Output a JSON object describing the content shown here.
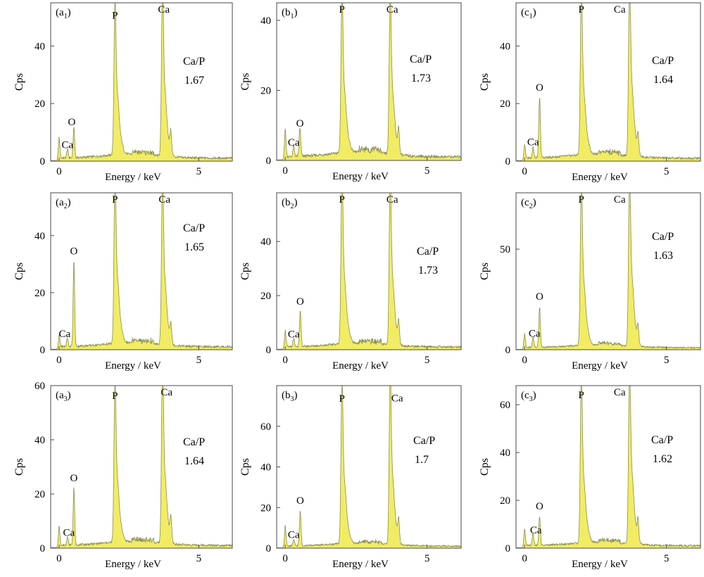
{
  "chart_data": [
    {
      "id": "a1",
      "panel_label": "(a",
      "panel_sub": "1",
      "type": "area",
      "xlabel": "Energy / keV",
      "ylabel": "Cps",
      "xlim": [
        -0.3,
        6.2
      ],
      "ylim": [
        0,
        55
      ],
      "xticks": [
        {
          "v": 0,
          "label": "0"
        },
        {
          "v": 5,
          "label": "5"
        }
      ],
      "yticks": [
        {
          "v": 0,
          "label": "0"
        },
        {
          "v": 20,
          "label": "20"
        },
        {
          "v": 40,
          "label": "40"
        }
      ],
      "ratio_label": "Ca/P",
      "ratio_value": "1.67",
      "peaks": [
        {
          "x": 0.0,
          "h": 7,
          "label": "",
          "dx": 0,
          "dy": 0
        },
        {
          "x": 0.3,
          "h": 3,
          "label": "Ca",
          "dx": 0,
          "dy": -6
        },
        {
          "x": 0.53,
          "h": 10.5,
          "label": "O",
          "dx": -3,
          "dy": -8
        },
        {
          "x": 2.0,
          "h": 47.5,
          "label": "P",
          "dx": 0,
          "dy": -8
        },
        {
          "x": 3.7,
          "h": 52.5,
          "label": "Ca",
          "dx": 2,
          "dy": -6
        },
        {
          "x": 4.0,
          "h": 7,
          "label": "",
          "dx": 0,
          "dy": 0
        }
      ]
    },
    {
      "id": "b1",
      "panel_label": "(b",
      "panel_sub": "1",
      "type": "area",
      "xlabel": "Energy / keV",
      "ylabel": "Cps",
      "xlim": [
        -0.3,
        6.2
      ],
      "ylim": [
        0,
        45
      ],
      "xticks": [
        {
          "v": 0,
          "label": "0"
        },
        {
          "v": 5,
          "label": "5"
        }
      ],
      "yticks": [
        {
          "v": 0,
          "label": "0"
        },
        {
          "v": 20,
          "label": "20"
        },
        {
          "v": 40,
          "label": "40"
        }
      ],
      "ratio_label": "Ca/P",
      "ratio_value": "1.73",
      "peaks": [
        {
          "x": 0.0,
          "h": 8,
          "label": "",
          "dx": 0,
          "dy": 0
        },
        {
          "x": 0.3,
          "h": 3,
          "label": "Ca",
          "dx": 0,
          "dy": -6
        },
        {
          "x": 0.52,
          "h": 8,
          "label": "O",
          "dx": 0,
          "dy": -8
        },
        {
          "x": 2.0,
          "h": 41,
          "label": "P",
          "dx": 0,
          "dy": -8
        },
        {
          "x": 3.7,
          "h": 41,
          "label": "Ca",
          "dx": 3,
          "dy": -6
        },
        {
          "x": 4.0,
          "h": 6,
          "label": "",
          "dx": 0,
          "dy": 0
        }
      ]
    },
    {
      "id": "c1",
      "panel_label": "(c",
      "panel_sub": "1",
      "type": "area",
      "xlabel": "Energy / keV",
      "ylabel": "Cps",
      "xlim": [
        -0.3,
        6.2
      ],
      "ylim": [
        0,
        55
      ],
      "xticks": [
        {
          "v": 0,
          "label": "0"
        },
        {
          "v": 5,
          "label": "5"
        }
      ],
      "yticks": [
        {
          "v": 0,
          "label": "0"
        },
        {
          "v": 20,
          "label": "20"
        },
        {
          "v": 40,
          "label": "40"
        }
      ],
      "ratio_label": "Ca/P",
      "ratio_value": "1.64",
      "peaks": [
        {
          "x": 0.0,
          "h": 5,
          "label": "",
          "dx": 0,
          "dy": 0
        },
        {
          "x": 0.3,
          "h": 4,
          "label": "Ca",
          "dx": 0,
          "dy": -6
        },
        {
          "x": 0.53,
          "h": 21,
          "label": "O",
          "dx": 0,
          "dy": -14
        },
        {
          "x": 2.0,
          "h": 51,
          "label": "P",
          "dx": 0,
          "dy": -8
        },
        {
          "x": 3.7,
          "h": 55,
          "label": "Ca",
          "dx": -14,
          "dy": 8
        },
        {
          "x": 4.0,
          "h": 6,
          "label": "",
          "dx": 0,
          "dy": 0
        }
      ]
    },
    {
      "id": "a2",
      "panel_label": "(a",
      "panel_sub": "2",
      "type": "area",
      "xlabel": "Energy / keV",
      "ylabel": "Cps",
      "xlim": [
        -0.3,
        6.2
      ],
      "ylim": [
        0,
        55
      ],
      "xticks": [
        {
          "v": 0,
          "label": "0"
        },
        {
          "v": 5,
          "label": "5"
        }
      ],
      "yticks": [
        {
          "v": 0,
          "label": "0"
        },
        {
          "v": 20,
          "label": "20"
        },
        {
          "v": 40,
          "label": "40"
        }
      ],
      "ratio_label": "Ca/P",
      "ratio_value": "1.65",
      "peaks": [
        {
          "x": 0.0,
          "h": 4,
          "label": "",
          "dx": 0,
          "dy": 0
        },
        {
          "x": 0.3,
          "h": 3,
          "label": "Ca",
          "dx": -4,
          "dy": -6
        },
        {
          "x": 0.53,
          "h": 30,
          "label": "O",
          "dx": 0,
          "dy": -14
        },
        {
          "x": 2.0,
          "h": 53,
          "label": "P",
          "dx": 0,
          "dy": -8
        },
        {
          "x": 3.7,
          "h": 52,
          "label": "Ca",
          "dx": 3,
          "dy": -6
        },
        {
          "x": 4.0,
          "h": 6,
          "label": "",
          "dx": 0,
          "dy": 0
        }
      ]
    },
    {
      "id": "b2",
      "panel_label": "(b",
      "panel_sub": "2",
      "type": "area",
      "xlabel": "Energy / keV",
      "ylabel": "Cps",
      "xlim": [
        -0.3,
        6.2
      ],
      "ylim": [
        0,
        58
      ],
      "xticks": [
        {
          "v": 0,
          "label": "0"
        },
        {
          "v": 5,
          "label": "5"
        }
      ],
      "yticks": [
        {
          "v": 0,
          "label": "0"
        },
        {
          "v": 20,
          "label": "20"
        },
        {
          "v": 40,
          "label": "40"
        }
      ],
      "ratio_label": "Ca/P",
      "ratio_value": "1.73",
      "peaks": [
        {
          "x": 0.0,
          "h": 6,
          "label": "",
          "dx": 0,
          "dy": 0
        },
        {
          "x": 0.3,
          "h": 3,
          "label": "Ca",
          "dx": 0,
          "dy": -6
        },
        {
          "x": 0.53,
          "h": 13,
          "label": "O",
          "dx": 0,
          "dy": -14
        },
        {
          "x": 2.0,
          "h": 56,
          "label": "P",
          "dx": 0,
          "dy": -8
        },
        {
          "x": 3.7,
          "h": 55,
          "label": "Ca",
          "dx": 3,
          "dy": -6
        },
        {
          "x": 4.0,
          "h": 7,
          "label": "",
          "dx": 0,
          "dy": 0
        }
      ]
    },
    {
      "id": "c2",
      "panel_label": "(c",
      "panel_sub": "2",
      "type": "area",
      "xlabel": "Energy / keV",
      "ylabel": "Cps",
      "xlim": [
        -0.3,
        6.2
      ],
      "ylim": [
        0,
        78
      ],
      "xticks": [
        {
          "v": 0,
          "label": "0"
        },
        {
          "v": 5,
          "label": "5"
        }
      ],
      "yticks": [
        {
          "v": 0,
          "label": "0"
        },
        {
          "v": 50,
          "label": "50"
        }
      ],
      "ratio_label": "Ca/P",
      "ratio_value": "1.63",
      "peaks": [
        {
          "x": 0.0,
          "h": 7,
          "label": "",
          "dx": 0,
          "dy": 0
        },
        {
          "x": 0.3,
          "h": 5,
          "label": "Ca",
          "dx": 2,
          "dy": -4
        },
        {
          "x": 0.53,
          "h": 20,
          "label": "O",
          "dx": 0,
          "dy": -14
        },
        {
          "x": 2.0,
          "h": 73,
          "label": "P",
          "dx": 0,
          "dy": -8
        },
        {
          "x": 3.7,
          "h": 78,
          "label": "Ca",
          "dx": -14,
          "dy": 10
        },
        {
          "x": 4.0,
          "h": 8,
          "label": "",
          "dx": 0,
          "dy": 0
        }
      ]
    },
    {
      "id": "a3",
      "panel_label": "(a",
      "panel_sub": "3",
      "type": "area",
      "xlabel": "Energy / keV",
      "ylabel": "Cps",
      "xlim": [
        -0.3,
        6.2
      ],
      "ylim": [
        0,
        60
      ],
      "xticks": [
        {
          "v": 0,
          "label": "0"
        },
        {
          "v": 5,
          "label": "5"
        }
      ],
      "yticks": [
        {
          "v": 0,
          "label": "0"
        },
        {
          "v": 20,
          "label": "20"
        },
        {
          "v": 40,
          "label": "40"
        },
        {
          "v": 60,
          "label": "60"
        }
      ],
      "ratio_label": "Ca/P",
      "ratio_value": "1.64",
      "peaks": [
        {
          "x": 0.0,
          "h": 7,
          "label": "",
          "dx": 0,
          "dy": 0
        },
        {
          "x": 0.3,
          "h": 3,
          "label": "Ca",
          "dx": 2,
          "dy": -6
        },
        {
          "x": 0.53,
          "h": 21,
          "label": "O",
          "dx": 0,
          "dy": -14
        },
        {
          "x": 2.0,
          "h": 53,
          "label": "P",
          "dx": 0,
          "dy": -8
        },
        {
          "x": 3.7,
          "h": 59,
          "label": "Ca",
          "dx": 6,
          "dy": 8
        },
        {
          "x": 4.0,
          "h": 8,
          "label": "",
          "dx": 0,
          "dy": 0
        }
      ]
    },
    {
      "id": "b3",
      "panel_label": "(b",
      "panel_sub": "3",
      "type": "area",
      "xlabel": "Energy / keV",
      "ylabel": "Cps",
      "xlim": [
        -0.3,
        6.2
      ],
      "ylim": [
        0,
        80
      ],
      "xticks": [
        {
          "v": 0,
          "label": "0"
        },
        {
          "v": 5,
          "label": "5"
        }
      ],
      "yticks": [
        {
          "v": 0,
          "label": "0"
        },
        {
          "v": 20,
          "label": "20"
        },
        {
          "v": 40,
          "label": "40"
        },
        {
          "v": 60,
          "label": "60"
        }
      ],
      "ratio_label": "Ca/P",
      "ratio_value": "1.7",
      "peaks": [
        {
          "x": 0.0,
          "h": 10,
          "label": "",
          "dx": 0,
          "dy": 0
        },
        {
          "x": 0.3,
          "h": 3,
          "label": "Ca",
          "dx": 0,
          "dy": -6
        },
        {
          "x": 0.53,
          "h": 17,
          "label": "O",
          "dx": 0,
          "dy": -14
        },
        {
          "x": 2.0,
          "h": 70,
          "label": "P",
          "dx": 0,
          "dy": -6
        },
        {
          "x": 3.7,
          "h": 75,
          "label": "Ca",
          "dx": 10,
          "dy": 8
        },
        {
          "x": 4.0,
          "h": 10,
          "label": "",
          "dx": 0,
          "dy": 0
        }
      ]
    },
    {
      "id": "c3",
      "panel_label": "(c",
      "panel_sub": "3",
      "type": "area",
      "xlabel": "Energy / keV",
      "ylabel": "Cps",
      "xlim": [
        -0.3,
        6.2
      ],
      "ylim": [
        0,
        68
      ],
      "xticks": [
        {
          "v": 0,
          "label": "0"
        },
        {
          "v": 5,
          "label": "5"
        }
      ],
      "yticks": [
        {
          "v": 0,
          "label": "0"
        },
        {
          "v": 20,
          "label": "20"
        },
        {
          "v": 40,
          "label": "40"
        },
        {
          "v": 60,
          "label": "60"
        }
      ],
      "ratio_label": "Ca/P",
      "ratio_value": "1.62",
      "peaks": [
        {
          "x": 0.0,
          "h": 7,
          "label": "",
          "dx": 0,
          "dy": 0
        },
        {
          "x": 0.3,
          "h": 5,
          "label": "Ca",
          "dx": 4,
          "dy": -4
        },
        {
          "x": 0.53,
          "h": 12,
          "label": "O",
          "dx": 0,
          "dy": -14
        },
        {
          "x": 2.0,
          "h": 61,
          "label": "P",
          "dx": 0,
          "dy": -6
        },
        {
          "x": 3.7,
          "h": 67,
          "label": "Ca",
          "dx": -14,
          "dy": 8
        },
        {
          "x": 4.0,
          "h": 8,
          "label": "",
          "dx": 0,
          "dy": 0
        }
      ]
    }
  ],
  "colors": {
    "spectrum_fill": "#f1ec63",
    "spectrum_edge": "#8a8f54",
    "axis": "#4a4a4a"
  }
}
